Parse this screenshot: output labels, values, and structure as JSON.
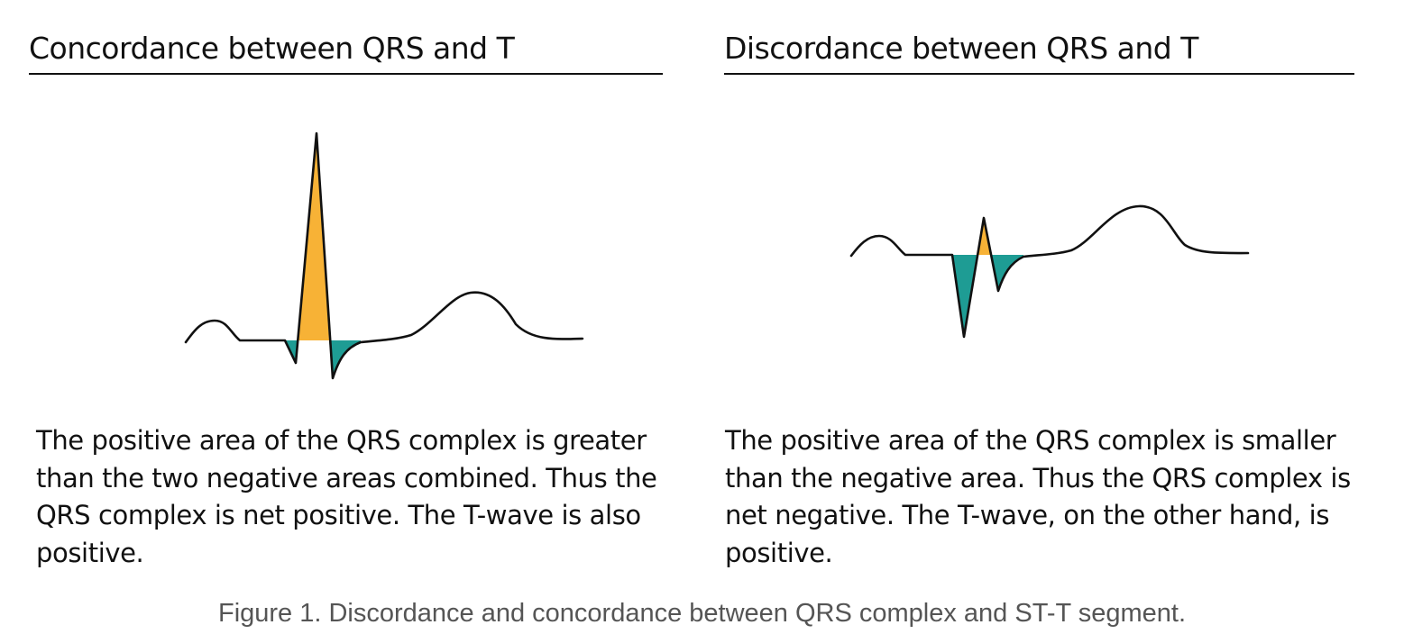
{
  "panels": {
    "left": {
      "title": "Concordance between QRS and T",
      "description": "The positive area of the QRS complex is greater than the two negative areas combined. Thus the QRS complex is net positive. The T-wave is also positive."
    },
    "right": {
      "title": "Discordance between QRS and T",
      "description": "The positive area of the QRS complex is smaller than the negative area. Thus the QRS complex is net negative. The T-wave, on the other hand, is positive."
    }
  },
  "caption": "Figure 1. Discordance and concordance between QRS complex and ST-T segment.",
  "colors": {
    "positive_area": "#F7B236",
    "negative_area": "#1E9C94",
    "trace": "#111111"
  }
}
